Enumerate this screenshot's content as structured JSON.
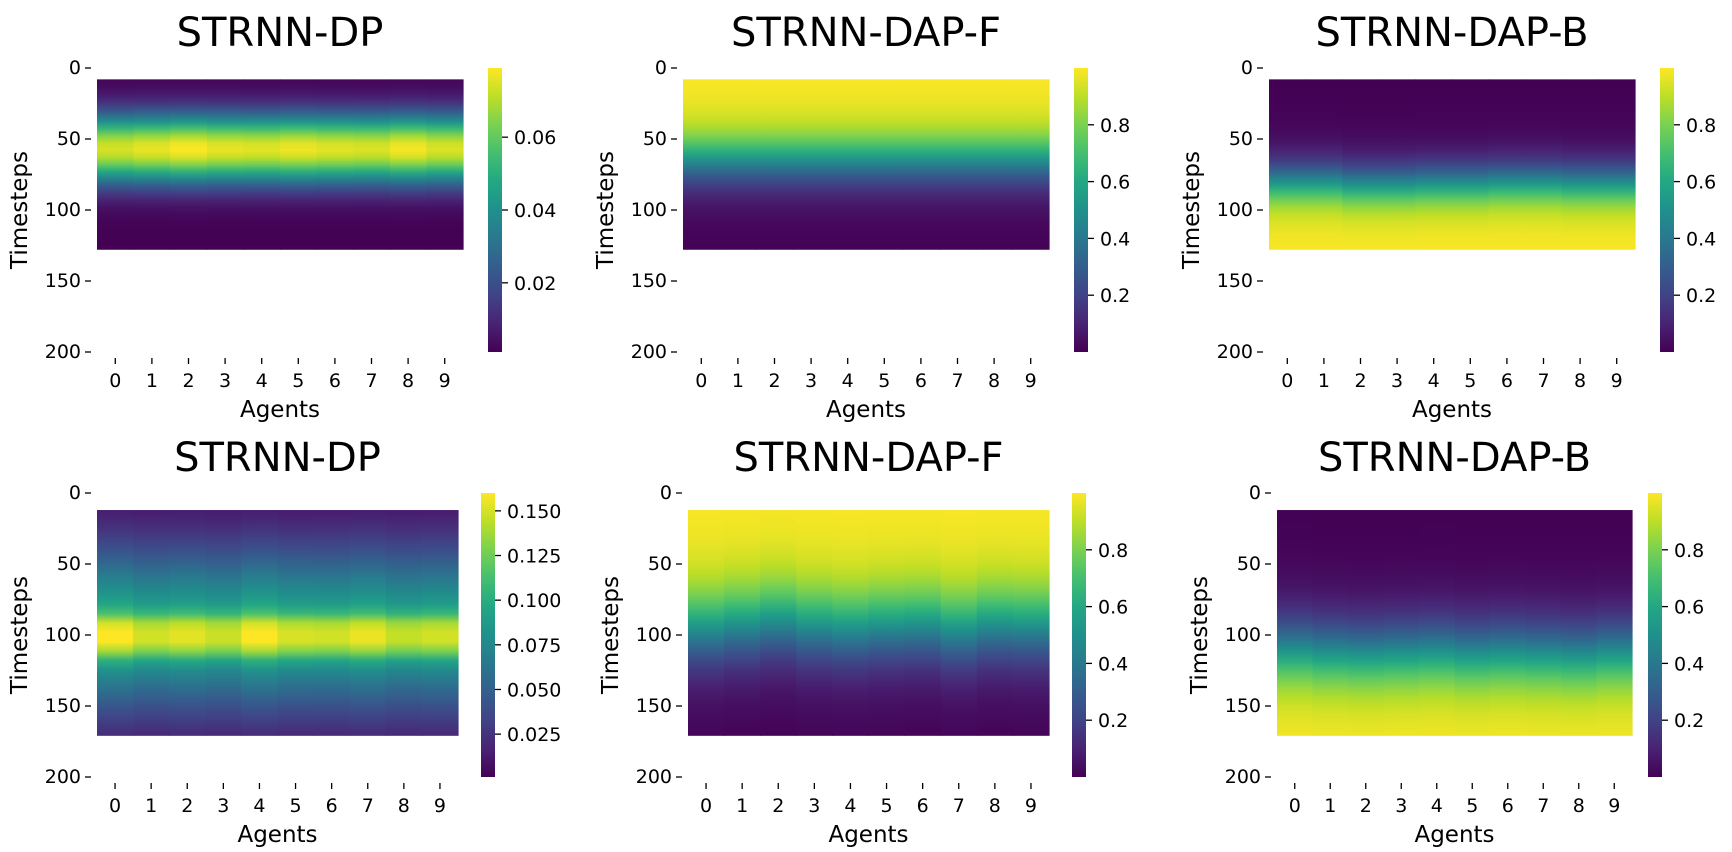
{
  "chart_data": [
    {
      "type": "heatmap",
      "title": "STRNN-DP",
      "xlabel": "Agents",
      "ylabel": "Timesteps",
      "x": [
        0,
        1,
        2,
        3,
        4,
        5,
        6,
        7,
        8,
        9
      ],
      "x_ticks": [
        "0",
        "1",
        "2",
        "3",
        "4",
        "5",
        "6",
        "7",
        "8",
        "9"
      ],
      "ylim": [
        0,
        200
      ],
      "y_ticks": [
        "0",
        "50",
        "100",
        "150",
        "200"
      ],
      "data_rows": [
        8,
        128
      ],
      "colorscale": "viridis",
      "colorbar_range": [
        0.001,
        0.079
      ],
      "colorbar_ticks": [
        {
          "value": 0.02,
          "label": "0.02"
        },
        {
          "value": 0.04,
          "label": "0.04"
        },
        {
          "value": 0.06,
          "label": "0.06"
        }
      ],
      "profile": {
        "kind": "peak",
        "peaks": [
          {
            "center": 57,
            "width": 17,
            "amp": 1
          }
        ]
      },
      "agent_values": [
        0.94,
        0.97,
        1.0,
        0.97,
        0.96,
        0.98,
        0.96,
        0.95,
        0.99,
        0.95
      ]
    },
    {
      "type": "heatmap",
      "title": "STRNN-DAP-F",
      "xlabel": "Agents",
      "ylabel": "Timesteps",
      "x": [
        0,
        1,
        2,
        3,
        4,
        5,
        6,
        7,
        8,
        9
      ],
      "x_ticks": [
        "0",
        "1",
        "2",
        "3",
        "4",
        "5",
        "6",
        "7",
        "8",
        "9"
      ],
      "ylim": [
        0,
        200
      ],
      "y_ticks": [
        "0",
        "50",
        "100",
        "150",
        "200"
      ],
      "data_rows": [
        8,
        128
      ],
      "colorscale": "viridis",
      "colorbar_range": [
        0.0,
        1.0
      ],
      "colorbar_ticks": [
        {
          "value": 0.2,
          "label": "0.2"
        },
        {
          "value": 0.4,
          "label": "0.4"
        },
        {
          "value": 0.6,
          "label": "0.6"
        },
        {
          "value": 0.8,
          "label": "0.8"
        }
      ],
      "profile": {
        "kind": "fall",
        "center": 65,
        "width": 12
      },
      "agent_values": [
        0,
        0,
        0,
        0,
        0,
        0,
        0,
        0,
        0,
        0
      ]
    },
    {
      "type": "heatmap",
      "title": "STRNN-DAP-B",
      "xlabel": "Agents",
      "ylabel": "Timesteps",
      "x": [
        0,
        1,
        2,
        3,
        4,
        5,
        6,
        7,
        8,
        9
      ],
      "x_ticks": [
        "0",
        "1",
        "2",
        "3",
        "4",
        "5",
        "6",
        "7",
        "8",
        "9"
      ],
      "ylim": [
        0,
        200
      ],
      "y_ticks": [
        "0",
        "50",
        "100",
        "150",
        "200"
      ],
      "data_rows": [
        8,
        128
      ],
      "colorscale": "viridis",
      "colorbar_range": [
        0.0,
        1.0
      ],
      "colorbar_ticks": [
        {
          "value": 0.2,
          "label": "0.2"
        },
        {
          "value": 0.4,
          "label": "0.4"
        },
        {
          "value": 0.6,
          "label": "0.6"
        },
        {
          "value": 0.8,
          "label": "0.8"
        }
      ],
      "profile": {
        "kind": "rise",
        "center": 80,
        "width": 10
      },
      "agent_values": [
        0,
        0,
        2,
        2,
        1,
        1,
        0,
        0,
        1,
        1
      ]
    },
    {
      "type": "heatmap",
      "title": "STRNN-DP",
      "xlabel": "Agents",
      "ylabel": "Timesteps",
      "x": [
        0,
        1,
        2,
        3,
        4,
        5,
        6,
        7,
        8,
        9
      ],
      "x_ticks": [
        "0",
        "1",
        "2",
        "3",
        "4",
        "5",
        "6",
        "7",
        "8",
        "9"
      ],
      "ylim": [
        0,
        200
      ],
      "y_ticks": [
        "0",
        "50",
        "100",
        "150",
        "200"
      ],
      "data_rows": [
        12,
        171
      ],
      "colorscale": "viridis",
      "colorbar_range": [
        0.001,
        0.16
      ],
      "colorbar_ticks": [
        {
          "value": 0.025,
          "label": "0.025"
        },
        {
          "value": 0.05,
          "label": "0.050"
        },
        {
          "value": 0.075,
          "label": "0.075"
        },
        {
          "value": 0.1,
          "label": "0.100"
        },
        {
          "value": 0.125,
          "label": "0.125"
        },
        {
          "value": 0.15,
          "label": "0.150"
        }
      ],
      "profile": {
        "kind": "peak",
        "peaks": [
          {
            "center": 101,
            "width": 9,
            "amp": 0.55
          },
          {
            "center": 96,
            "width": 42,
            "amp": 0.62
          }
        ]
      },
      "agent_values": [
        1.0,
        0.93,
        0.96,
        0.92,
        1.0,
        0.94,
        0.93,
        0.97,
        0.91,
        0.93
      ]
    },
    {
      "type": "heatmap",
      "title": "STRNN-DAP-F",
      "xlabel": "Agents",
      "ylabel": "Timesteps",
      "x": [
        0,
        1,
        2,
        3,
        4,
        5,
        6,
        7,
        8,
        9
      ],
      "x_ticks": [
        "0",
        "1",
        "2",
        "3",
        "4",
        "5",
        "6",
        "7",
        "8",
        "9"
      ],
      "ylim": [
        0,
        200
      ],
      "y_ticks": [
        "0",
        "50",
        "100",
        "150",
        "200"
      ],
      "data_rows": [
        12,
        171
      ],
      "colorscale": "viridis",
      "colorbar_range": [
        0.0,
        1.0
      ],
      "colorbar_ticks": [
        {
          "value": 0.2,
          "label": "0.2"
        },
        {
          "value": 0.4,
          "label": "0.4"
        },
        {
          "value": 0.6,
          "label": "0.6"
        },
        {
          "value": 0.8,
          "label": "0.8"
        }
      ],
      "profile": {
        "kind": "fall",
        "center": 96,
        "width": 18
      },
      "agent_values": [
        0,
        -3,
        -6,
        -2,
        0,
        -2,
        -3,
        1,
        -3,
        -2
      ]
    },
    {
      "type": "heatmap",
      "title": "STRNN-DAP-B",
      "xlabel": "Agents",
      "ylabel": "Timesteps",
      "x": [
        0,
        1,
        2,
        3,
        4,
        5,
        6,
        7,
        8,
        9
      ],
      "x_ticks": [
        "0",
        "1",
        "2",
        "3",
        "4",
        "5",
        "6",
        "7",
        "8",
        "9"
      ],
      "ylim": [
        0,
        200
      ],
      "y_ticks": [
        "0",
        "50",
        "100",
        "150",
        "200"
      ],
      "data_rows": [
        12,
        171
      ],
      "colorscale": "viridis",
      "colorbar_range": [
        0.0,
        1.0
      ],
      "colorbar_ticks": [
        {
          "value": 0.2,
          "label": "0.2"
        },
        {
          "value": 0.4,
          "label": "0.4"
        },
        {
          "value": 0.6,
          "label": "0.6"
        },
        {
          "value": 0.8,
          "label": "0.8"
        }
      ],
      "profile": {
        "kind": "rise",
        "center": 110,
        "width": 16
      },
      "agent_values": [
        0,
        2,
        3,
        2,
        1,
        3,
        2,
        3,
        4,
        2
      ]
    }
  ]
}
